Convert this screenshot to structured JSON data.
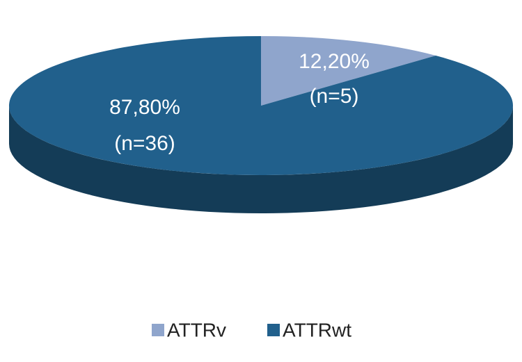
{
  "chart_data": {
    "type": "pie3d",
    "categories": [
      "ATTRv",
      "ATTRwt"
    ],
    "values": [
      12.2,
      87.8
    ],
    "value_labels": [
      "12,20%",
      "87,80%"
    ],
    "counts": [
      5,
      36
    ],
    "count_labels": [
      "(n=5)",
      "(n=36)"
    ],
    "colors": [
      "#8fa5cc",
      "#21608c"
    ],
    "legend": "bottom"
  }
}
